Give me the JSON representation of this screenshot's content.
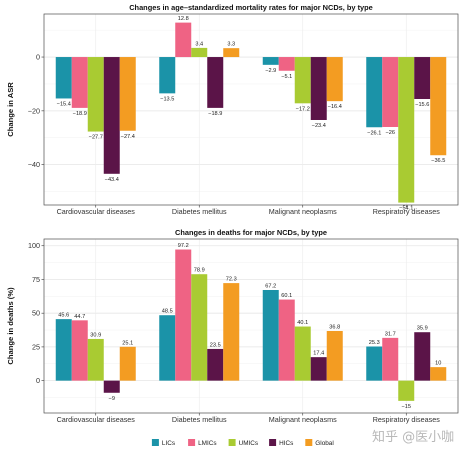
{
  "chart_data": [
    {
      "type": "bar",
      "title": "Changes in age–standardized mortality rates for major NCDs, by type",
      "xlabel": "",
      "ylabel": "Change in ASR",
      "ylim": [
        -55,
        16
      ],
      "yticks": [
        0,
        -20,
        -40
      ],
      "grid": true,
      "legend": "bottom",
      "categories": [
        "Cardiovascular diseases",
        "Diabetes mellitus",
        "Malignant neoplasms",
        "Respiratory diseases"
      ],
      "series": [
        {
          "name": "LICs",
          "color": "#1b93a8",
          "values": [
            -15.4,
            -13.5,
            -2.9,
            -26.1
          ]
        },
        {
          "name": "LMICs",
          "color": "#ef6384",
          "values": [
            -18.9,
            12.8,
            -5.1,
            -26
          ]
        },
        {
          "name": "UMICs",
          "color": "#a9cb32",
          "values": [
            -27.7,
            3.4,
            -17.2,
            -54.1
          ]
        },
        {
          "name": "HICs",
          "color": "#5b1448",
          "values": [
            -43.4,
            -18.9,
            -23.4,
            -15.6
          ]
        },
        {
          "name": "Global",
          "color": "#f39c22",
          "values": [
            -27.4,
            3.3,
            -16.4,
            -36.5
          ]
        }
      ]
    },
    {
      "type": "bar",
      "title": "Changes in deaths for major NCDs, by type",
      "xlabel": "",
      "ylabel": "Change in deaths (%)",
      "ylim": [
        -24,
        105
      ],
      "yticks": [
        100,
        75,
        50,
        25,
        0
      ],
      "grid": true,
      "legend": "bottom",
      "categories": [
        "Cardiovascular diseases",
        "Diabetes mellitus",
        "Malignant neoplasms",
        "Respiratory diseases"
      ],
      "series": [
        {
          "name": "LICs",
          "color": "#1b93a8",
          "values": [
            45.6,
            48.5,
            67.2,
            25.3
          ]
        },
        {
          "name": "LMICs",
          "color": "#ef6384",
          "values": [
            44.7,
            97.2,
            60.1,
            31.7
          ]
        },
        {
          "name": "UMICs",
          "color": "#a9cb32",
          "values": [
            30.9,
            78.9,
            40.1,
            -15
          ]
        },
        {
          "name": "HICs",
          "color": "#5b1448",
          "values": [
            -9,
            23.5,
            17.4,
            35.9
          ]
        },
        {
          "name": "Global",
          "color": "#f39c22",
          "values": [
            25.1,
            72.3,
            36.8,
            10
          ]
        }
      ]
    }
  ],
  "legend": {
    "items": [
      {
        "name": "LICs",
        "color": "#1b93a8"
      },
      {
        "name": "LMICs",
        "color": "#ef6384"
      },
      {
        "name": "UMICs",
        "color": "#a9cb32"
      },
      {
        "name": "HICs",
        "color": "#5b1448"
      },
      {
        "name": "Global",
        "color": "#f39c22"
      }
    ]
  },
  "watermark": {
    "text": "知乎 @医小咖"
  }
}
